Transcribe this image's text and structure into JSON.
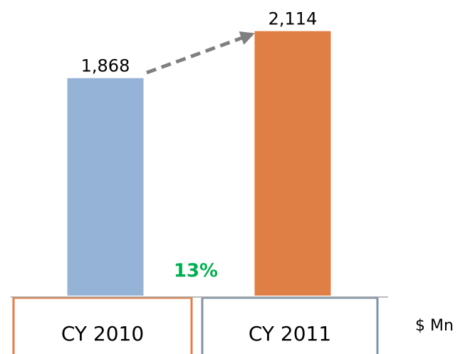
{
  "chart_data": {
    "type": "bar",
    "categories": [
      "CY 2010",
      "CY 2011"
    ],
    "values": [
      1868,
      2114
    ],
    "value_labels": [
      "1,868",
      "2,114"
    ],
    "colors": [
      "#95b3d7",
      "#e07f45"
    ],
    "ylim": [
      730,
      2180
    ],
    "annotation": "13%",
    "unit_label": "$ Mn"
  }
}
